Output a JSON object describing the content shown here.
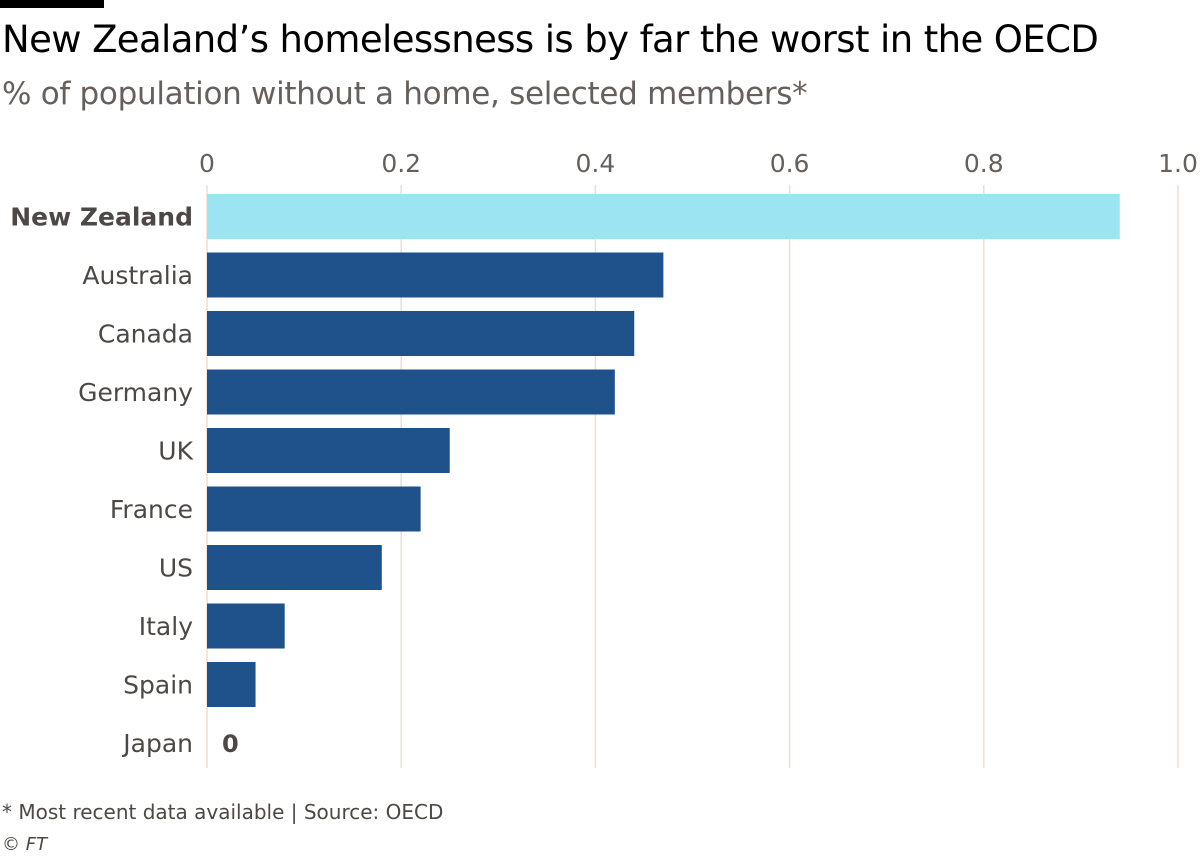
{
  "header": {
    "title": "New Zealand’s homelessness is by far the worst in the OECD",
    "subtitle": "% of population without a home, selected members*"
  },
  "footer": {
    "note": "* Most recent data available | Source: OECD",
    "copyright": "© FT"
  },
  "colors": {
    "highlight": "#9de4f2",
    "bar": "#1f528a",
    "grid": "#eddcd5",
    "axis_text": "#66605c",
    "label_text": "#4d4845"
  },
  "chart_data": {
    "type": "bar",
    "orientation": "horizontal",
    "title": "New Zealand’s homelessness is by far the worst in the OECD",
    "subtitle": "% of population without a home, selected members*",
    "xlabel": "",
    "ylabel": "",
    "xlim": [
      0,
      1.0
    ],
    "ticks": [
      0,
      0.2,
      0.4,
      0.6,
      0.8,
      1.0
    ],
    "tick_labels": [
      "0",
      "0.2",
      "0.4",
      "0.6",
      "0.8",
      "1.0"
    ],
    "grid": true,
    "categories": [
      "New Zealand",
      "Australia",
      "Canada",
      "Germany",
      "UK",
      "France",
      "US",
      "Italy",
      "Spain",
      "Japan"
    ],
    "values": [
      0.94,
      0.47,
      0.44,
      0.42,
      0.25,
      0.22,
      0.18,
      0.08,
      0.05,
      0
    ],
    "highlight": "New Zealand",
    "annotations": [
      {
        "category": "Japan",
        "text": "0"
      }
    ]
  }
}
